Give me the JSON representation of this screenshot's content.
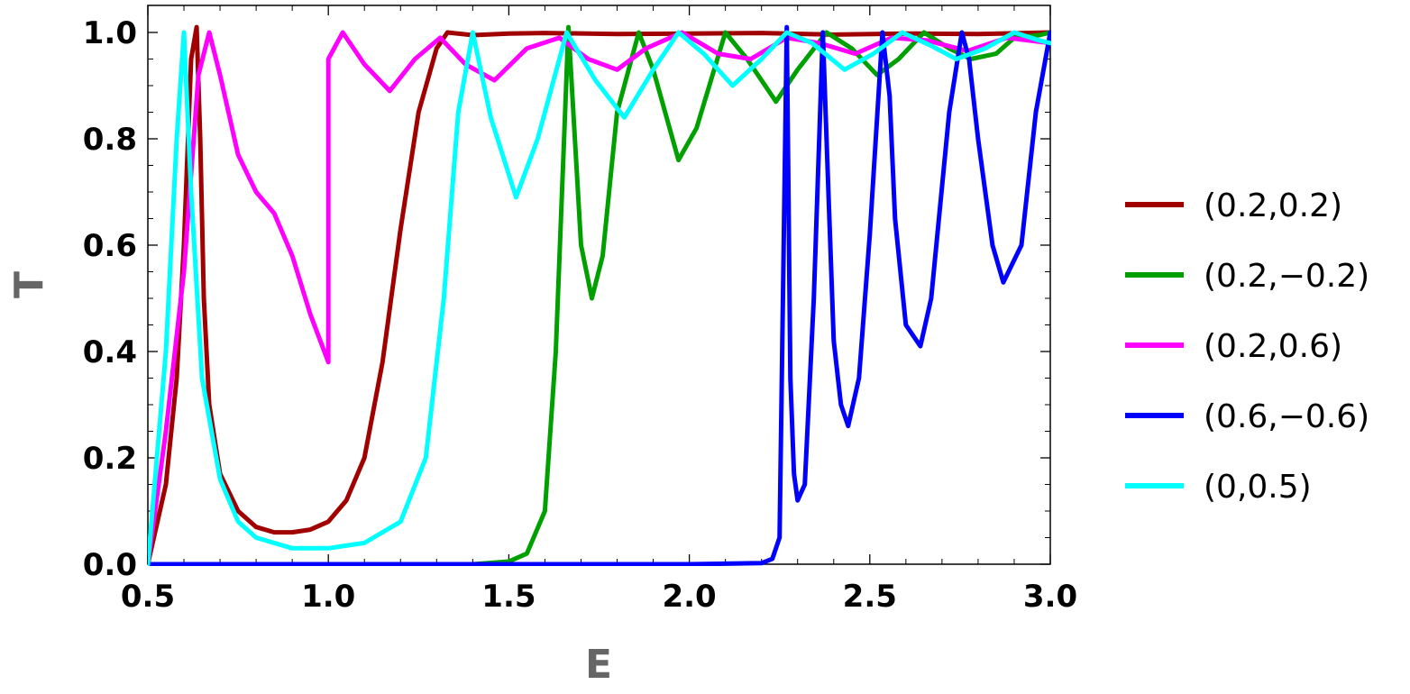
{
  "chart_data": {
    "type": "line",
    "title": "",
    "xlabel": "E",
    "ylabel": "T",
    "xlim": [
      0.5,
      3.0
    ],
    "ylim": [
      0.0,
      1.0
    ],
    "xticks": [
      0.5,
      1.0,
      1.5,
      2.0,
      2.5,
      3.0
    ],
    "xtick_labels": [
      "0.5",
      "1.0",
      "1.5",
      "2.0",
      "2.5",
      "3.0"
    ],
    "yticks": [
      0.0,
      0.2,
      0.4,
      0.6,
      0.8,
      1.0
    ],
    "ytick_labels": [
      "0.0",
      "0.2",
      "0.4",
      "0.6",
      "0.8",
      "1.0"
    ],
    "grid": false,
    "legend_position": "right",
    "series": [
      {
        "name": "(0.2,0.2)",
        "color": "#a00000",
        "x": [
          0.5,
          0.55,
          0.58,
          0.6,
          0.62,
          0.635,
          0.645,
          0.655,
          0.67,
          0.7,
          0.75,
          0.8,
          0.85,
          0.9,
          0.95,
          1.0,
          1.05,
          1.1,
          1.15,
          1.2,
          1.25,
          1.3,
          1.33,
          1.4,
          1.5,
          1.6,
          1.8,
          2.0,
          2.2,
          2.4,
          2.6,
          2.8,
          3.0
        ],
        "y": [
          0.0,
          0.15,
          0.35,
          0.6,
          0.95,
          1.01,
          0.8,
          0.5,
          0.3,
          0.17,
          0.1,
          0.07,
          0.06,
          0.06,
          0.065,
          0.08,
          0.12,
          0.2,
          0.38,
          0.63,
          0.85,
          0.97,
          1.0,
          0.995,
          0.998,
          0.999,
          0.997,
          0.998,
          0.999,
          0.996,
          0.998,
          0.997,
          1.0
        ]
      },
      {
        "name": "(0.2,−0.2)",
        "color": "#00a000",
        "x": [
          0.5,
          1.0,
          1.4,
          1.5,
          1.55,
          1.6,
          1.63,
          1.665,
          1.7,
          1.73,
          1.76,
          1.8,
          1.86,
          1.9,
          1.97,
          2.02,
          2.1,
          2.16,
          2.24,
          2.3,
          2.38,
          2.45,
          2.52,
          2.58,
          2.65,
          2.72,
          2.78,
          2.85,
          2.9,
          2.97,
          3.0
        ],
        "y": [
          0.0,
          0.0,
          0.0,
          0.005,
          0.02,
          0.1,
          0.4,
          1.01,
          0.6,
          0.5,
          0.58,
          0.85,
          1.0,
          0.93,
          0.76,
          0.82,
          1.0,
          0.95,
          0.87,
          0.93,
          1.0,
          0.97,
          0.92,
          0.95,
          1.0,
          0.97,
          0.95,
          0.96,
          0.99,
          0.995,
          1.0
        ]
      },
      {
        "name": "(0.2,0.6)",
        "color": "#ff00ff",
        "x": [
          0.5,
          0.55,
          0.6,
          0.64,
          0.67,
          0.7,
          0.75,
          0.8,
          0.85,
          0.9,
          0.95,
          1.0,
          1.0,
          1.04,
          1.1,
          1.17,
          1.24,
          1.31,
          1.38,
          1.46,
          1.55,
          1.64,
          1.72,
          1.8,
          1.88,
          1.98,
          2.08,
          2.17,
          2.27,
          2.36,
          2.46,
          2.56,
          2.66,
          2.77,
          2.88,
          3.0
        ],
        "y": [
          0.0,
          0.25,
          0.55,
          0.92,
          1.0,
          0.92,
          0.77,
          0.7,
          0.66,
          0.58,
          0.47,
          0.38,
          0.95,
          1.0,
          0.94,
          0.89,
          0.95,
          0.99,
          0.94,
          0.91,
          0.97,
          0.99,
          0.95,
          0.93,
          0.97,
          1.0,
          0.96,
          0.95,
          0.99,
          0.98,
          0.96,
          0.99,
          0.985,
          0.965,
          0.99,
          0.98
        ]
      },
      {
        "name": "(0.6,−0.6)",
        "color": "#0000ff",
        "x": [
          0.5,
          1.0,
          1.5,
          2.0,
          2.2,
          2.23,
          2.25,
          2.27,
          2.28,
          2.29,
          2.3,
          2.32,
          2.345,
          2.37,
          2.38,
          2.4,
          2.42,
          2.44,
          2.47,
          2.5,
          2.535,
          2.555,
          2.57,
          2.6,
          2.64,
          2.67,
          2.72,
          2.755,
          2.775,
          2.8,
          2.84,
          2.87,
          2.92,
          2.96,
          3.0
        ],
        "y": [
          0.0,
          0.0,
          0.0,
          0.0,
          0.002,
          0.01,
          0.05,
          1.01,
          0.35,
          0.17,
          0.12,
          0.15,
          0.5,
          1.0,
          0.8,
          0.42,
          0.3,
          0.26,
          0.35,
          0.62,
          1.0,
          0.88,
          0.65,
          0.45,
          0.41,
          0.5,
          0.85,
          1.0,
          0.95,
          0.8,
          0.6,
          0.53,
          0.6,
          0.85,
          1.0
        ]
      },
      {
        "name": "(0,0.5)",
        "color": "#00ffff",
        "x": [
          0.5,
          0.55,
          0.58,
          0.6,
          0.62,
          0.65,
          0.7,
          0.75,
          0.8,
          0.9,
          1.0,
          1.1,
          1.2,
          1.27,
          1.32,
          1.36,
          1.4,
          1.45,
          1.52,
          1.58,
          1.66,
          1.74,
          1.82,
          1.9,
          1.97,
          2.04,
          2.12,
          2.2,
          2.27,
          2.34,
          2.43,
          2.51,
          2.59,
          2.67,
          2.74,
          2.82,
          2.9,
          2.97,
          3.0
        ],
        "y": [
          0.0,
          0.4,
          0.8,
          1.0,
          0.7,
          0.35,
          0.16,
          0.08,
          0.05,
          0.03,
          0.03,
          0.04,
          0.08,
          0.2,
          0.5,
          0.85,
          1.0,
          0.84,
          0.69,
          0.8,
          1.0,
          0.91,
          0.84,
          0.93,
          1.0,
          0.96,
          0.9,
          0.95,
          1.0,
          0.98,
          0.93,
          0.96,
          1.0,
          0.975,
          0.95,
          0.97,
          1.0,
          0.985,
          0.98
        ]
      }
    ]
  }
}
